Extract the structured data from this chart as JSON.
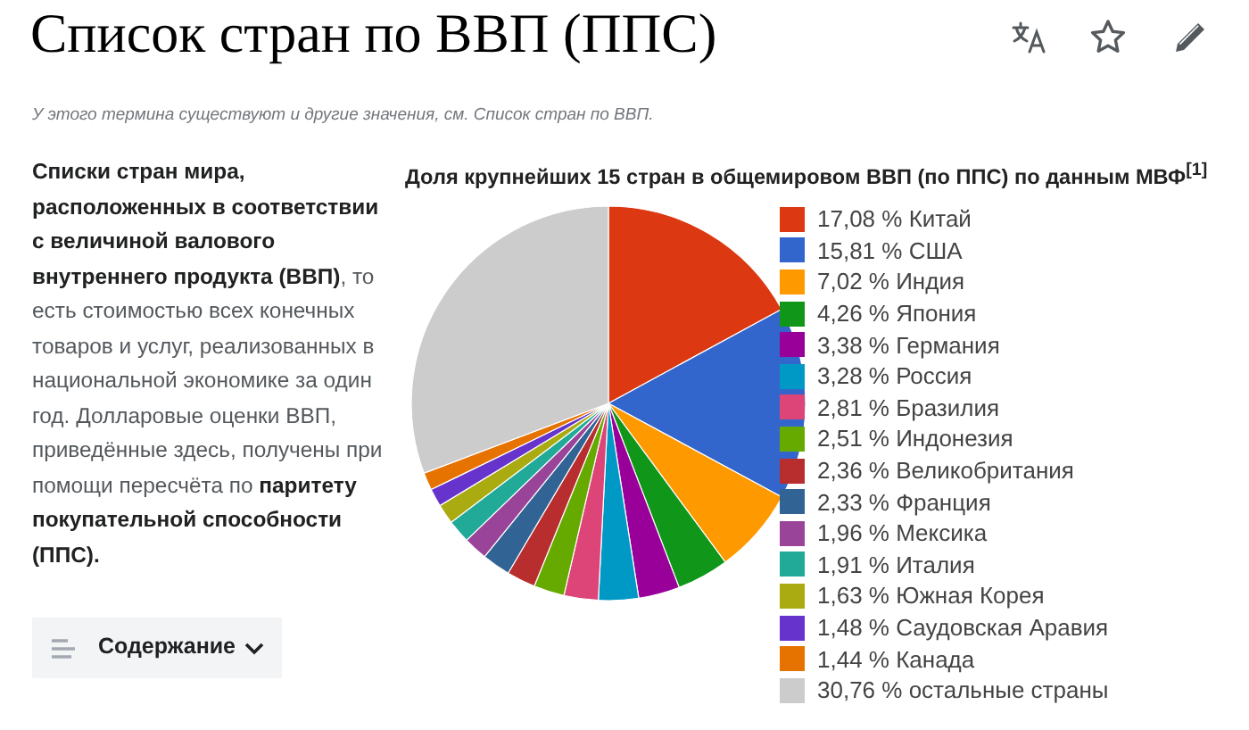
{
  "chart_data": {
    "type": "pie",
    "title": "Список стран по ВВП (ППС)",
    "subtitle": "Доля крупнейших 15 стран в общемировом ВВП (по ППС) по данным МВФ$^{[1]}$",
    "categories": [
      "Китай",
      "США",
      "Индия",
      "Япония",
      "Германия",
      "Россия",
      "Бразилия",
      "Индонезия",
      "Великобритания",
      "Франция",
      "Мексика",
      "Италия",
      "Южная Корея",
      "Саудовская Аравия",
      "Канада",
      "остальные страны"
    ],
    "values": [
      17.08,
      15.81,
      7.02,
      4.26,
      3.38,
      3.28,
      2.81,
      2.51,
      2.36,
      2.33,
      1.96,
      1.91,
      1.63,
      1.48,
      1.44,
      30.76
    ],
    "value_labels": [
      "17,08 %",
      "15,81 %",
      "7,02 %",
      "4,26 %",
      "3,38 %",
      "3,28 %",
      "2,81 %",
      "2,51 %",
      "2,36 %",
      "2,33 %",
      "1,96 %",
      "1,91 %",
      "1,63 %",
      "1,48 %",
      "1,44 %",
      "30,76 %"
    ],
    "colors": [
      "#dc3912",
      "#3366cc",
      "#ff9900",
      "#109618",
      "#990099",
      "#0099c6",
      "#dd4477",
      "#66aa00",
      "#b82e2e",
      "#316395",
      "#994499",
      "#22aa99",
      "#aaaa11",
      "#6633cc",
      "#e67300",
      "#cccccc"
    ],
    "legend": "right",
    "annotations": [
      "У этого термина существуют и другие значения, см. Список стран по ВВП.",
      "Списки стран мира, расположенных в соответствии с величиной валового внутреннего продукта (ВВП)",
      ", то есть стоимостью всех конечных товаров и услуг, реализованных в национальной экономике за один год. Долларовые оценки ВВП, приведённые здесь, получены при помощи пересчёта по ",
      "паритету покупательной способности (ППС).",
      "Содержание"
    ]
  }
}
